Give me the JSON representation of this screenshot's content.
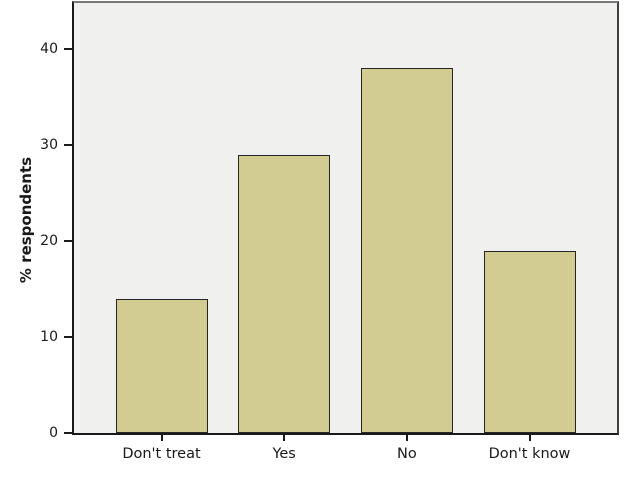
{
  "chart_data": {
    "type": "bar",
    "categories": [
      "Don't treat",
      "Yes",
      "No",
      "Don't know"
    ],
    "values": [
      14,
      29,
      38,
      19
    ],
    "title": "",
    "xlabel": "",
    "ylabel": "% respondents",
    "ylim": [
      0,
      44.8
    ],
    "yticks": [
      0,
      10,
      20,
      30,
      40
    ],
    "grid": false,
    "legend_position": "none",
    "colors": {
      "bar_fill": "#d2cc93",
      "bar_border": "#262626",
      "plot_bg": "#f0f0ee",
      "canvas_bg": "#ffffff",
      "axis_color": "#1a1a1a",
      "frame_top": "#7a7a7a",
      "frame_right": "#404040",
      "text": "#1a1a1a"
    }
  }
}
